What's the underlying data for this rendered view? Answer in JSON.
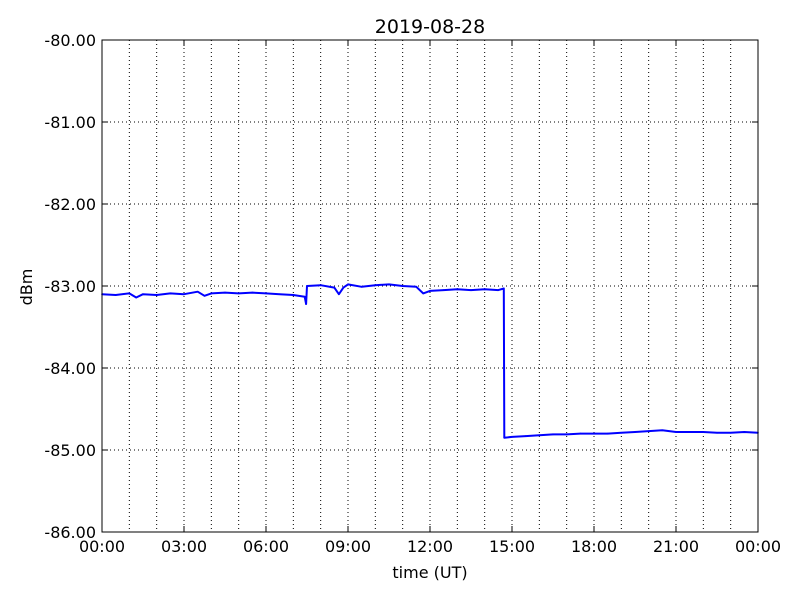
{
  "chart_data": {
    "type": "line",
    "title": "2019-08-28",
    "xlabel": "time (UT)",
    "ylabel": "dBm",
    "xlim": [
      "00:00",
      "24:00"
    ],
    "ylim": [
      -86,
      -80
    ],
    "grid": true,
    "x_tick_labels": [
      "00:00",
      "03:00",
      "06:00",
      "09:00",
      "12:00",
      "15:00",
      "18:00",
      "21:00",
      "00:00"
    ],
    "y_tick_labels": [
      "-80.00",
      "-81.00",
      "-82.00",
      "-83.00",
      "-84.00",
      "-85.00",
      "-86.00"
    ],
    "line_color": "#0000ff",
    "series": [
      {
        "x": [
          "00:00",
          "00:30",
          "01:00",
          "01:15",
          "01:30",
          "02:00",
          "02:30",
          "03:00",
          "03:30",
          "03:45",
          "04:00",
          "04:30",
          "05:00",
          "05:30",
          "06:00",
          "06:30",
          "07:00",
          "07:25",
          "07:28",
          "07:30",
          "08:00",
          "08:30",
          "08:40",
          "08:50",
          "09:00",
          "09:30",
          "10:00",
          "10:30",
          "11:00",
          "11:30",
          "11:45",
          "12:00",
          "12:30",
          "13:00",
          "13:30",
          "14:00",
          "14:30",
          "14:42",
          "14:43",
          "15:00",
          "15:30",
          "16:00",
          "16:30",
          "17:00",
          "17:30",
          "18:00",
          "18:30",
          "19:00",
          "19:30",
          "20:00",
          "20:30",
          "21:00",
          "21:30",
          "22:00",
          "22:30",
          "23:00",
          "23:30",
          "24:00"
        ],
        "y": [
          -83.1,
          -83.11,
          -83.09,
          -83.14,
          -83.1,
          -83.11,
          -83.09,
          -83.1,
          -83.07,
          -83.12,
          -83.09,
          -83.08,
          -83.09,
          -83.08,
          -83.09,
          -83.1,
          -83.11,
          -83.13,
          -83.22,
          -83.0,
          -82.99,
          -83.02,
          -83.1,
          -83.02,
          -82.98,
          -83.01,
          -82.99,
          -82.98,
          -83.0,
          -83.01,
          -83.09,
          -83.06,
          -83.05,
          -83.04,
          -83.05,
          -83.04,
          -83.05,
          -83.03,
          -84.85,
          -84.84,
          -84.83,
          -84.82,
          -84.81,
          -84.81,
          -84.8,
          -84.8,
          -84.8,
          -84.79,
          -84.78,
          -84.77,
          -84.76,
          -84.78,
          -84.78,
          -84.78,
          -84.79,
          -84.79,
          -84.78,
          -84.79
        ]
      }
    ]
  }
}
